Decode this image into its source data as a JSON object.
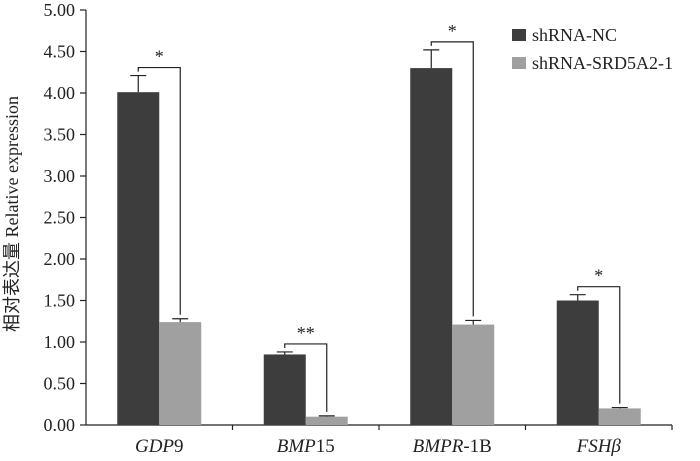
{
  "chart_data": {
    "type": "bar",
    "title": "",
    "xlabel": "",
    "ylabel": "相对表达量 Relative expression",
    "ylim": [
      0,
      5
    ],
    "yticks": [
      "0.00",
      "0.50",
      "1.00",
      "1.50",
      "2.00",
      "2.50",
      "3.00",
      "3.50",
      "4.00",
      "4.50",
      "5.00"
    ],
    "categories": [
      {
        "italic": "GDP",
        "plain": "9"
      },
      {
        "italic": "BMP",
        "plain": "15"
      },
      {
        "italic": "BMPR",
        "plain": "-1B"
      },
      {
        "italic": "FSHβ",
        "plain": ""
      }
    ],
    "series": [
      {
        "name": "shRNA-NC",
        "color": "#3d3d3d",
        "values": [
          4.01,
          0.85,
          4.3,
          1.5
        ],
        "errors": [
          0.2,
          0.03,
          0.22,
          0.07
        ]
      },
      {
        "name": "shRNA-SRD5A2-1",
        "color": "#a0a0a0",
        "values": [
          1.24,
          0.1,
          1.21,
          0.2
        ],
        "errors": [
          0.04,
          0.01,
          0.05,
          0.01
        ]
      }
    ],
    "significance": [
      "*",
      "**",
      "*",
      "*"
    ],
    "legend_position": "top-right"
  }
}
